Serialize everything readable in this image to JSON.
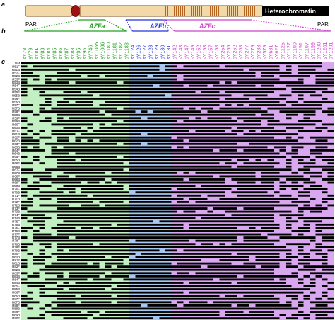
{
  "panel_labels": {
    "a": "a",
    "b": "b",
    "c": "c"
  },
  "chromosome": {
    "par_left": "PAR",
    "par_right": "PAR",
    "heterochromatin": "Heterochromatin",
    "chromosome_color": "#f3d9a8",
    "band_color": "#b5651d",
    "centromere_color": "#a01010"
  },
  "regions": [
    {
      "name": "AZFa",
      "color": "#22a022",
      "fill": "#c2f0c2"
    },
    {
      "name": "AZFb",
      "color": "#2233dd",
      "fill": "#a8c8f0"
    },
    {
      "name": "AZFc",
      "color": "#cc44cc",
      "fill": "#d9a6f0"
    }
  ],
  "markers": [
    {
      "label": "sY78",
      "region": 0
    },
    {
      "label": "sY79",
      "region": 0
    },
    {
      "label": "sY81",
      "region": 0
    },
    {
      "label": "sY83",
      "region": 0
    },
    {
      "label": "sY84",
      "region": 0
    },
    {
      "label": "sY85",
      "region": 0
    },
    {
      "label": "sY86",
      "region": 0
    },
    {
      "label": "sY87",
      "region": 0
    },
    {
      "label": "sY88",
      "region": 0
    },
    {
      "label": "sY95",
      "region": 0
    },
    {
      "label": "sY96",
      "region": 0
    },
    {
      "label": "sY746",
      "region": 0
    },
    {
      "label": "sY1065",
      "region": 0
    },
    {
      "label": "sY1086",
      "region": 0
    },
    {
      "label": "sY1180",
      "region": 0
    },
    {
      "label": "sY1181",
      "region": 0
    },
    {
      "label": "sY1182",
      "region": 0
    },
    {
      "label": "sY1183",
      "region": 0
    },
    {
      "label": "sY124",
      "region": 1
    },
    {
      "label": "sY126",
      "region": 1
    },
    {
      "label": "sY127",
      "region": 1
    },
    {
      "label": "sY128",
      "region": 1
    },
    {
      "label": "sY129",
      "region": 1
    },
    {
      "label": "sY130",
      "region": 1
    },
    {
      "label": "sY131",
      "region": 1
    },
    {
      "label": "sY142",
      "region": 2
    },
    {
      "label": "sY143",
      "region": 2
    },
    {
      "label": "sY147",
      "region": 2
    },
    {
      "label": "sY149",
      "region": 2
    },
    {
      "label": "sY152",
      "region": 2
    },
    {
      "label": "sY153",
      "region": 2
    },
    {
      "label": "sY157",
      "region": 2
    },
    {
      "label": "sY158",
      "region": 2
    },
    {
      "label": "sY254",
      "region": 2
    },
    {
      "label": "sY255",
      "region": 2
    },
    {
      "label": "sY262",
      "region": 2
    },
    {
      "label": "sY268",
      "region": 2
    },
    {
      "label": "sY277",
      "region": 2
    },
    {
      "label": "sY279",
      "region": 2
    },
    {
      "label": "sY283",
      "region": 2
    },
    {
      "label": "sY579",
      "region": 2
    },
    {
      "label": "sY581",
      "region": 2
    },
    {
      "label": "sY627",
      "region": 2
    },
    {
      "label": "sY1125",
      "region": 2
    },
    {
      "label": "sY1127",
      "region": 2
    },
    {
      "label": "sY1190",
      "region": 2
    },
    {
      "label": "sY1191",
      "region": 2
    },
    {
      "label": "sY1197",
      "region": 2
    },
    {
      "label": "sY1199",
      "region": 2
    },
    {
      "label": "sY1200",
      "region": 2
    },
    {
      "label": "sY1201",
      "region": 2
    },
    {
      "label": "sY1291",
      "region": 2
    }
  ],
  "rows": [
    "NM",
    "R51F",
    "R51B",
    "R52F",
    "R52B",
    "R53F",
    "R53B",
    "R54F",
    "R54B",
    "R55F",
    "R55B",
    "R56F",
    "R56B",
    "R57F",
    "R57B",
    "R58F",
    "R58B",
    "R59F",
    "R59B",
    "R60F",
    "R60B",
    "R61F",
    "R61B",
    "R62F",
    "R62B",
    "R63F",
    "R63B",
    "R64F",
    "R64B",
    "R65F",
    "R65B",
    "R66F",
    "R66B",
    "R67F",
    "R67B",
    "R68F",
    "R68B",
    "R69F",
    "R69B",
    "R70F",
    "R70B",
    "R71F",
    "R71B",
    "R72F",
    "R72B",
    "R73F",
    "R73B",
    "R74F",
    "R74B",
    "R75F",
    "R75B",
    "R76F",
    "R76B",
    "R77F",
    "R77B",
    "R78F",
    "R78B",
    "R79F",
    "R79B",
    "R80F",
    "R80B",
    "R81F",
    "R81B",
    "R82F",
    "R82B",
    "R83F",
    "R83B",
    "R84F",
    "R84B",
    "R85F",
    "R85B",
    "R86F",
    "R86B",
    "R87F",
    "R87B",
    "R88F",
    "R88B",
    "R89F",
    "R89B",
    "R90F"
  ],
  "legend_color_present": "#000000"
}
